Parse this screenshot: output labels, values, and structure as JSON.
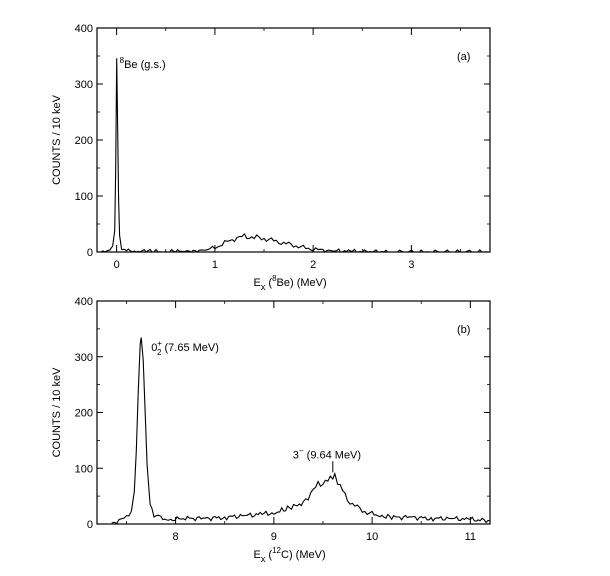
{
  "chart_data": [
    {
      "type": "line",
      "panel_label": "(a)",
      "ylabel": "COUNTS / 10 keV",
      "xlabel": {
        "prefix": "E",
        "sub": "x",
        "paren_open": " (",
        "sup": "8",
        "element": "Be",
        "paren_close": ")",
        "unit": "  (MeV)"
      },
      "xlim": [
        -0.2,
        3.8
      ],
      "ylim": [
        0,
        400
      ],
      "x_ticks": [
        "0",
        "1",
        "2",
        "3"
      ],
      "x_tick_values": [
        0,
        1,
        2,
        3
      ],
      "y_ticks": [
        "0",
        "100",
        "200",
        "300",
        "400"
      ],
      "y_tick_values": [
        0,
        100,
        200,
        300,
        400
      ],
      "annotations": [
        {
          "sup": "8",
          "text": "Be (g.s.)",
          "x": 0.0,
          "y": 350
        }
      ],
      "series": [
        {
          "x": [
            -0.2,
            -0.12,
            -0.07,
            -0.04,
            -0.02,
            -0.01,
            0.0,
            0.01,
            0.02,
            0.03,
            0.05,
            0.08,
            0.12,
            0.2,
            0.3,
            0.4,
            0.5,
            0.6,
            0.7,
            0.8,
            0.9,
            0.95,
            1.0,
            1.05,
            1.1,
            1.15,
            1.2,
            1.25,
            1.3,
            1.35,
            1.4,
            1.45,
            1.5,
            1.55,
            1.6,
            1.65,
            1.7,
            1.75,
            1.8,
            1.85,
            1.9,
            1.95,
            2.0,
            2.05,
            2.1,
            2.2,
            2.4,
            2.8,
            3.2,
            3.8
          ],
          "y": [
            0,
            0,
            2,
            8,
            40,
            150,
            345,
            230,
            90,
            30,
            8,
            3,
            2,
            1,
            1,
            1,
            0,
            1,
            1,
            2,
            3,
            5,
            8,
            12,
            16,
            20,
            24,
            26,
            28,
            27,
            26,
            25,
            24,
            22,
            20,
            18,
            16,
            14,
            12,
            10,
            8,
            6,
            5,
            4,
            3,
            2,
            1,
            0,
            0,
            0
          ]
        }
      ]
    },
    {
      "type": "line",
      "panel_label": "(b)",
      "ylabel": "COUNTS / 10 keV",
      "xlabel": {
        "prefix": "E",
        "sub": "x",
        "paren_open": " (",
        "sup": "12",
        "element": "C",
        "paren_close": ")",
        "unit": "  (MeV)"
      },
      "xlim": [
        7.2,
        11.2
      ],
      "ylim": [
        0,
        400
      ],
      "x_ticks": [
        "8",
        "9",
        "10",
        "11"
      ],
      "x_tick_values": [
        8,
        9,
        10,
        11
      ],
      "y_ticks": [
        "0",
        "100",
        "200",
        "300",
        "400"
      ],
      "y_tick_values": [
        0,
        100,
        200,
        300,
        400
      ],
      "annotations": [
        {
          "text": "0",
          "sub": "2",
          "sup": "+",
          "tail": " (7.65 MeV)",
          "x": 7.65,
          "y": 335
        },
        {
          "text": "3",
          "sup": "−",
          "tail": " (9.64 MeV)",
          "x": 9.6,
          "y": 100
        }
      ],
      "series": [
        {
          "x": [
            7.35,
            7.4,
            7.45,
            7.5,
            7.55,
            7.58,
            7.6,
            7.62,
            7.64,
            7.65,
            7.67,
            7.69,
            7.71,
            7.74,
            7.78,
            7.85,
            7.95,
            8.1,
            8.3,
            8.5,
            8.7,
            8.9,
            9.0,
            9.1,
            9.2,
            9.3,
            9.35,
            9.4,
            9.45,
            9.5,
            9.55,
            9.6,
            9.62,
            9.65,
            9.7,
            9.75,
            9.8,
            9.85,
            9.9,
            9.95,
            10.0,
            10.1,
            10.2,
            10.4,
            10.6,
            10.8,
            11.0,
            11.2
          ],
          "y": [
            2,
            5,
            8,
            12,
            25,
            60,
            130,
            240,
            320,
            335,
            300,
            200,
            100,
            40,
            15,
            10,
            8,
            10,
            10,
            12,
            15,
            18,
            20,
            25,
            30,
            40,
            50,
            60,
            70,
            75,
            80,
            78,
            90,
            70,
            60,
            45,
            35,
            30,
            25,
            20,
            18,
            15,
            12,
            12,
            10,
            10,
            8,
            6
          ]
        }
      ]
    }
  ]
}
